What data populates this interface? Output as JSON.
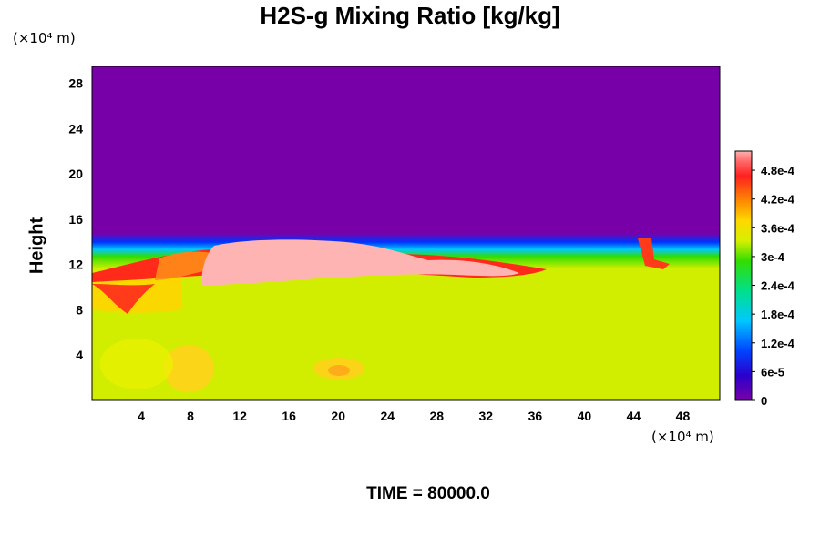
{
  "chart_data": {
    "type": "heatmap",
    "title": "H2S-g Mixing Ratio [kg/kg]",
    "ylabel": "Height",
    "xlabel": "",
    "x_unit": "(×10⁴ m)",
    "y_unit": "(×10⁴ m)",
    "xlim": [
      0,
      51
    ],
    "ylim": [
      0,
      29.5
    ],
    "x_ticks": [
      "4",
      "8",
      "12",
      "16",
      "20",
      "24",
      "28",
      "32",
      "36",
      "40",
      "44",
      "48"
    ],
    "y_ticks": [
      "4",
      "8",
      "12",
      "16",
      "20",
      "24",
      "28"
    ],
    "colorbar": {
      "range": [
        0,
        0.00052
      ],
      "tick_labels": [
        "0",
        "6e-5",
        "1.2e-4",
        "1.8e-4",
        "2.4e-4",
        "3e-4",
        "3.6e-4",
        "4.2e-4",
        "4.8e-4"
      ],
      "tick_values": [
        0,
        6e-05,
        0.00012,
        0.00018,
        0.00024,
        0.0003,
        0.00036,
        0.00042,
        0.00048
      ]
    },
    "field_summary": {
      "upper_layer_value": 0,
      "lower_layer_value": 0.00033,
      "interface_height_approx": 14.5,
      "high_concentration_band": {
        "x_range": [
          10,
          33
        ],
        "height_range": [
          11,
          14
        ],
        "value": 0.00052
      }
    },
    "grid": false,
    "legend_position": "right"
  },
  "footer": {
    "time_label": "TIME = 80000.0"
  }
}
